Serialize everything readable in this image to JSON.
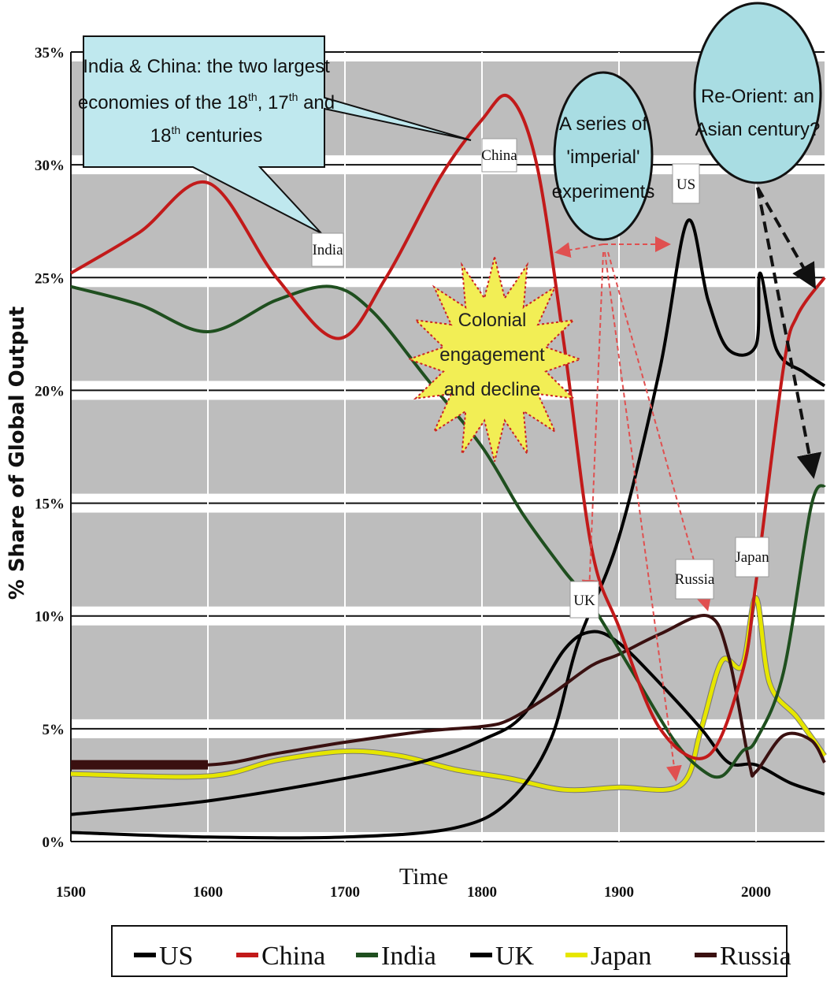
{
  "chart_data": {
    "type": "line",
    "ylabel": "% Share of Global Output",
    "xlabel": "Time",
    "xlim": [
      1500,
      2050
    ],
    "ylim": [
      0,
      35
    ],
    "x_ticks": [
      1500,
      1600,
      1700,
      1800,
      1900,
      2000
    ],
    "x_tick_labels": [
      "1500",
      "1600",
      "1700",
      "1800",
      "1900",
      "2000"
    ],
    "y_ticks": [
      0,
      5,
      10,
      15,
      20,
      25,
      30,
      35
    ],
    "y_tick_labels": [
      "0%",
      "5%",
      "10%",
      "15%",
      "20%",
      "25%",
      "30%",
      "35%"
    ],
    "grid": true,
    "legend_position": "bottom",
    "series": [
      {
        "name": "US",
        "color": "#000000",
        "x": [
          1500,
          1600,
          1700,
          1780,
          1820,
          1850,
          1870,
          1900,
          1930,
          1950,
          1965,
          1980,
          2000,
          2003,
          2015,
          2035,
          2050
        ],
        "y": [
          0.4,
          0.2,
          0.2,
          0.6,
          1.8,
          4.5,
          8.8,
          13.5,
          21.0,
          27.5,
          24.0,
          21.8,
          22.0,
          25.2,
          21.8,
          20.8,
          20.2
        ]
      },
      {
        "name": "China",
        "color": "#c21a1a",
        "x": [
          1500,
          1550,
          1600,
          1650,
          1695,
          1730,
          1770,
          1800,
          1820,
          1840,
          1860,
          1880,
          1900,
          1930,
          1965,
          1990,
          2000,
          2020,
          2030,
          2050
        ],
        "y": [
          25.2,
          27.0,
          29.2,
          25.0,
          22.3,
          25.0,
          29.5,
          32.0,
          33.0,
          30.0,
          22.0,
          13.0,
          9.5,
          5.0,
          3.8,
          7.5,
          11.5,
          21.0,
          23.3,
          25.0
        ]
      },
      {
        "name": "India",
        "color": "#1f4f1f",
        "x": [
          1500,
          1550,
          1600,
          1650,
          1690,
          1720,
          1760,
          1800,
          1830,
          1860,
          1880,
          1910,
          1940,
          1960,
          1975,
          1990,
          2000,
          2020,
          2040,
          2050
        ],
        "y": [
          24.6,
          23.8,
          22.6,
          24.0,
          24.6,
          23.5,
          20.5,
          17.5,
          14.5,
          12.0,
          10.5,
          7.5,
          4.5,
          3.2,
          2.9,
          4.0,
          4.5,
          7.5,
          14.8,
          15.8
        ]
      },
      {
        "name": "UK",
        "color": "#000000",
        "x": [
          1500,
          1600,
          1700,
          1760,
          1800,
          1830,
          1860,
          1880,
          1900,
          1930,
          1960,
          1980,
          2000,
          2025,
          2050
        ],
        "y": [
          1.2,
          1.8,
          2.8,
          3.6,
          4.5,
          5.6,
          8.5,
          9.3,
          8.8,
          7.0,
          5.0,
          3.5,
          3.4,
          2.6,
          2.1
        ]
      },
      {
        "name": "Japan",
        "color": "#e6e600",
        "x": [
          1500,
          1600,
          1650,
          1700,
          1740,
          1780,
          1820,
          1860,
          1900,
          1945,
          1960,
          1975,
          1990,
          2000,
          2010,
          2030,
          2050
        ],
        "y": [
          3.0,
          2.9,
          3.6,
          4.0,
          3.8,
          3.2,
          2.8,
          2.3,
          2.4,
          2.5,
          5.0,
          8.0,
          7.8,
          10.8,
          7.0,
          5.5,
          3.8
        ]
      },
      {
        "name": "Russia",
        "color": "#3a1010",
        "x": [
          1500,
          1600,
          1650,
          1700,
          1760,
          1800,
          1820,
          1850,
          1880,
          1900,
          1930,
          1965,
          1980,
          1995,
          2000,
          2020,
          2040,
          2050
        ],
        "y": [
          3.4,
          3.4,
          3.9,
          4.4,
          4.9,
          5.1,
          5.4,
          6.5,
          7.8,
          8.3,
          9.2,
          10.0,
          8.2,
          3.5,
          3.1,
          4.7,
          4.5,
          3.5
        ]
      }
    ],
    "annotations": {
      "bubble_india_china": {
        "line1": "India & China: the two largest",
        "line2a": "economies of the 18",
        "sup2a": "th",
        "line2b": ", 17",
        "sup2b": "th",
        "line2c": " and",
        "line3a": "18",
        "sup3a": "th",
        "line3b": " centuries"
      },
      "bubble_imperial": [
        "A series of",
        "'imperial'",
        "experiments"
      ],
      "bubble_reorient": [
        "Re-Orient: an",
        "Asian century?"
      ],
      "colonial_star": [
        "Colonial",
        "engagement",
        "and decline"
      ],
      "labels": {
        "china": "China",
        "india": "India",
        "us": "US",
        "uk": "UK",
        "russia": "Russia",
        "japan": "Japan"
      }
    }
  }
}
